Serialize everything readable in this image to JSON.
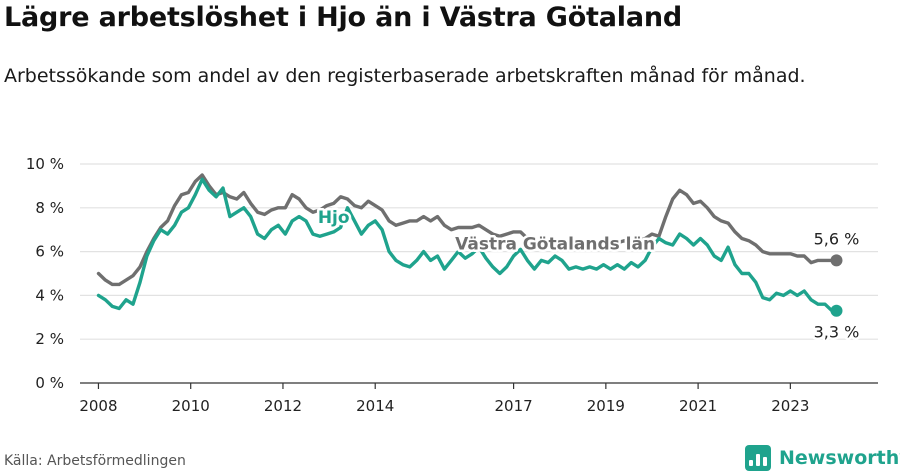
{
  "title": "Lägre arbetslöshet i Hjo än i Västra Götaland",
  "subtitle": "Arbetssökande som andel av den registerbaserade arbetskraften månad för månad.",
  "source": "Källa: Arbetsförmedlingen",
  "brand": "Newsworthy",
  "colors": {
    "hjo": "#1fa38d",
    "vg": "#6f6f6f",
    "grid": "#e2e2e2",
    "axis": "#333333"
  },
  "chart_data": {
    "type": "line",
    "title": "Lägre arbetslöshet i Hjo än i Västra Götaland",
    "ylabel": "",
    "xlabel": "",
    "ylim": [
      0,
      10
    ],
    "xlim": [
      2007.6,
      2024.9
    ],
    "yticks": [
      0,
      2,
      4,
      6,
      8,
      10
    ],
    "ytick_labels": [
      "0 %",
      "2 %",
      "4 %",
      "6 %",
      "8 %",
      "10 %"
    ],
    "xticks": [
      2008,
      2010,
      2012,
      2014,
      2017,
      2019,
      2021,
      2023
    ],
    "xtick_labels": [
      "2008",
      "2010",
      "2012",
      "2014",
      "2017",
      "2019",
      "2021",
      "2023"
    ],
    "series": [
      {
        "name": "Hjo",
        "label": "Hjo",
        "label_at": [
          2013.1,
          7.3
        ],
        "end_label": "3,3 %",
        "points": [
          [
            2008.0,
            4.0
          ],
          [
            2008.15,
            3.8
          ],
          [
            2008.3,
            3.5
          ],
          [
            2008.45,
            3.4
          ],
          [
            2008.6,
            3.8
          ],
          [
            2008.75,
            3.6
          ],
          [
            2008.9,
            4.6
          ],
          [
            2009.05,
            5.8
          ],
          [
            2009.2,
            6.5
          ],
          [
            2009.35,
            7.0
          ],
          [
            2009.5,
            6.8
          ],
          [
            2009.65,
            7.2
          ],
          [
            2009.8,
            7.8
          ],
          [
            2009.95,
            8.0
          ],
          [
            2010.1,
            8.6
          ],
          [
            2010.25,
            9.3
          ],
          [
            2010.4,
            8.8
          ],
          [
            2010.55,
            8.5
          ],
          [
            2010.7,
            8.9
          ],
          [
            2010.85,
            7.6
          ],
          [
            2011.0,
            7.8
          ],
          [
            2011.15,
            8.0
          ],
          [
            2011.3,
            7.6
          ],
          [
            2011.45,
            6.8
          ],
          [
            2011.6,
            6.6
          ],
          [
            2011.75,
            7.0
          ],
          [
            2011.9,
            7.2
          ],
          [
            2012.05,
            6.8
          ],
          [
            2012.2,
            7.4
          ],
          [
            2012.35,
            7.6
          ],
          [
            2012.5,
            7.4
          ],
          [
            2012.65,
            6.8
          ],
          [
            2012.8,
            6.7
          ],
          [
            2012.95,
            6.8
          ],
          [
            2013.1,
            6.9
          ],
          [
            2013.25,
            7.1
          ],
          [
            2013.4,
            8.0
          ],
          [
            2013.55,
            7.4
          ],
          [
            2013.7,
            6.8
          ],
          [
            2013.85,
            7.2
          ],
          [
            2014.0,
            7.4
          ],
          [
            2014.15,
            7.0
          ],
          [
            2014.3,
            6.0
          ],
          [
            2014.45,
            5.6
          ],
          [
            2014.6,
            5.4
          ],
          [
            2014.75,
            5.3
          ],
          [
            2014.9,
            5.6
          ],
          [
            2015.05,
            6.0
          ],
          [
            2015.2,
            5.6
          ],
          [
            2015.35,
            5.8
          ],
          [
            2015.5,
            5.2
          ],
          [
            2015.65,
            5.6
          ],
          [
            2015.8,
            6.0
          ],
          [
            2015.95,
            5.7
          ],
          [
            2016.1,
            5.9
          ],
          [
            2016.25,
            6.2
          ],
          [
            2016.4,
            5.7
          ],
          [
            2016.55,
            5.3
          ],
          [
            2016.7,
            5.0
          ],
          [
            2016.85,
            5.3
          ],
          [
            2017.0,
            5.8
          ],
          [
            2017.15,
            6.1
          ],
          [
            2017.3,
            5.6
          ],
          [
            2017.45,
            5.2
          ],
          [
            2017.6,
            5.6
          ],
          [
            2017.75,
            5.5
          ],
          [
            2017.9,
            5.8
          ],
          [
            2018.05,
            5.6
          ],
          [
            2018.2,
            5.2
          ],
          [
            2018.35,
            5.3
          ],
          [
            2018.5,
            5.2
          ],
          [
            2018.65,
            5.3
          ],
          [
            2018.8,
            5.2
          ],
          [
            2018.95,
            5.4
          ],
          [
            2019.1,
            5.2
          ],
          [
            2019.25,
            5.4
          ],
          [
            2019.4,
            5.2
          ],
          [
            2019.55,
            5.5
          ],
          [
            2019.7,
            5.3
          ],
          [
            2019.85,
            5.6
          ],
          [
            2020.0,
            6.2
          ],
          [
            2020.15,
            6.6
          ],
          [
            2020.3,
            6.4
          ],
          [
            2020.45,
            6.3
          ],
          [
            2020.6,
            6.8
          ],
          [
            2020.75,
            6.6
          ],
          [
            2020.9,
            6.3
          ],
          [
            2021.05,
            6.6
          ],
          [
            2021.2,
            6.3
          ],
          [
            2021.35,
            5.8
          ],
          [
            2021.5,
            5.6
          ],
          [
            2021.65,
            6.2
          ],
          [
            2021.8,
            5.4
          ],
          [
            2021.95,
            5.0
          ],
          [
            2022.1,
            5.0
          ],
          [
            2022.25,
            4.6
          ],
          [
            2022.4,
            3.9
          ],
          [
            2022.55,
            3.8
          ],
          [
            2022.7,
            4.1
          ],
          [
            2022.85,
            4.0
          ],
          [
            2023.0,
            4.2
          ],
          [
            2023.15,
            4.0
          ],
          [
            2023.3,
            4.2
          ],
          [
            2023.45,
            3.8
          ],
          [
            2023.6,
            3.6
          ],
          [
            2023.75,
            3.6
          ],
          [
            2023.9,
            3.3
          ],
          [
            2024.0,
            3.3
          ]
        ]
      },
      {
        "name": "Västra Götalands län",
        "label": "Västra Götalands län",
        "label_at": [
          2017.9,
          6.1
        ],
        "end_label": "5,6 %",
        "points": [
          [
            2008.0,
            5.0
          ],
          [
            2008.15,
            4.7
          ],
          [
            2008.3,
            4.5
          ],
          [
            2008.45,
            4.5
          ],
          [
            2008.6,
            4.7
          ],
          [
            2008.75,
            4.9
          ],
          [
            2008.9,
            5.3
          ],
          [
            2009.05,
            6.0
          ],
          [
            2009.2,
            6.6
          ],
          [
            2009.35,
            7.1
          ],
          [
            2009.5,
            7.4
          ],
          [
            2009.65,
            8.1
          ],
          [
            2009.8,
            8.6
          ],
          [
            2009.95,
            8.7
          ],
          [
            2010.1,
            9.2
          ],
          [
            2010.25,
            9.5
          ],
          [
            2010.4,
            9.0
          ],
          [
            2010.55,
            8.6
          ],
          [
            2010.7,
            8.7
          ],
          [
            2010.85,
            8.5
          ],
          [
            2011.0,
            8.4
          ],
          [
            2011.15,
            8.7
          ],
          [
            2011.3,
            8.2
          ],
          [
            2011.45,
            7.8
          ],
          [
            2011.6,
            7.7
          ],
          [
            2011.75,
            7.9
          ],
          [
            2011.9,
            8.0
          ],
          [
            2012.05,
            8.0
          ],
          [
            2012.2,
            8.6
          ],
          [
            2012.35,
            8.4
          ],
          [
            2012.5,
            8.0
          ],
          [
            2012.65,
            7.8
          ],
          [
            2012.8,
            7.9
          ],
          [
            2012.95,
            8.1
          ],
          [
            2013.1,
            8.2
          ],
          [
            2013.25,
            8.5
          ],
          [
            2013.4,
            8.4
          ],
          [
            2013.55,
            8.1
          ],
          [
            2013.7,
            8.0
          ],
          [
            2013.85,
            8.3
          ],
          [
            2014.0,
            8.1
          ],
          [
            2014.15,
            7.9
          ],
          [
            2014.3,
            7.4
          ],
          [
            2014.45,
            7.2
          ],
          [
            2014.6,
            7.3
          ],
          [
            2014.75,
            7.4
          ],
          [
            2014.9,
            7.4
          ],
          [
            2015.05,
            7.6
          ],
          [
            2015.2,
            7.4
          ],
          [
            2015.35,
            7.6
          ],
          [
            2015.5,
            7.2
          ],
          [
            2015.65,
            7.0
          ],
          [
            2015.8,
            7.1
          ],
          [
            2015.95,
            7.1
          ],
          [
            2016.1,
            7.1
          ],
          [
            2016.25,
            7.2
          ],
          [
            2016.4,
            7.0
          ],
          [
            2016.55,
            6.8
          ],
          [
            2016.7,
            6.7
          ],
          [
            2016.85,
            6.8
          ],
          [
            2017.0,
            6.9
          ],
          [
            2017.15,
            6.9
          ],
          [
            2017.3,
            6.6
          ],
          [
            2017.45,
            6.4
          ],
          [
            2017.6,
            6.5
          ],
          [
            2017.75,
            6.4
          ],
          [
            2017.9,
            6.5
          ],
          [
            2018.05,
            6.3
          ],
          [
            2018.2,
            6.2
          ],
          [
            2018.35,
            6.1
          ],
          [
            2018.5,
            6.2
          ],
          [
            2018.65,
            6.2
          ],
          [
            2018.8,
            6.2
          ],
          [
            2018.95,
            6.3
          ],
          [
            2019.1,
            6.3
          ],
          [
            2019.25,
            6.4
          ],
          [
            2019.4,
            6.5
          ],
          [
            2019.55,
            6.4
          ],
          [
            2019.7,
            6.5
          ],
          [
            2019.85,
            6.6
          ],
          [
            2020.0,
            6.8
          ],
          [
            2020.15,
            6.7
          ],
          [
            2020.3,
            7.6
          ],
          [
            2020.45,
            8.4
          ],
          [
            2020.6,
            8.8
          ],
          [
            2020.75,
            8.6
          ],
          [
            2020.9,
            8.2
          ],
          [
            2021.05,
            8.3
          ],
          [
            2021.2,
            8.0
          ],
          [
            2021.35,
            7.6
          ],
          [
            2021.5,
            7.4
          ],
          [
            2021.65,
            7.3
          ],
          [
            2021.8,
            6.9
          ],
          [
            2021.95,
            6.6
          ],
          [
            2022.1,
            6.5
          ],
          [
            2022.25,
            6.3
          ],
          [
            2022.4,
            6.0
          ],
          [
            2022.55,
            5.9
          ],
          [
            2022.7,
            5.9
          ],
          [
            2022.85,
            5.9
          ],
          [
            2023.0,
            5.9
          ],
          [
            2023.15,
            5.8
          ],
          [
            2023.3,
            5.8
          ],
          [
            2023.45,
            5.5
          ],
          [
            2023.6,
            5.6
          ],
          [
            2023.75,
            5.6
          ],
          [
            2023.9,
            5.6
          ],
          [
            2024.0,
            5.6
          ]
        ]
      }
    ]
  }
}
